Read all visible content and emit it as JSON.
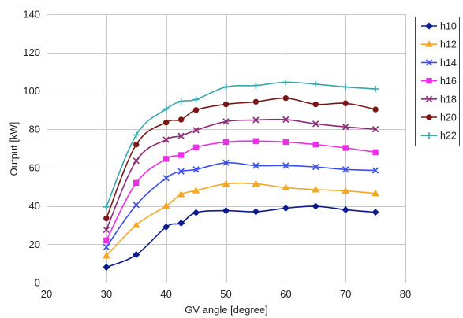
{
  "chart_data": {
    "type": "line",
    "xlabel": "GV angle [degree]",
    "ylabel": "Output [kW]",
    "xlim": [
      20,
      80
    ],
    "ylim": [
      0,
      140
    ],
    "xticks": [
      20,
      30,
      40,
      50,
      60,
      70,
      80
    ],
    "yticks": [
      0,
      20,
      40,
      60,
      80,
      100,
      120,
      140
    ],
    "grid": true,
    "legend_position": "right",
    "x": [
      30,
      35,
      40,
      42.5,
      45,
      50,
      55,
      60,
      65,
      70,
      75
    ],
    "series": [
      {
        "name": "h10",
        "marker": "diamond",
        "color": "#0b1a8c",
        "values": [
          8,
          14.5,
          29,
          31,
          36.5,
          37.5,
          37,
          38.8,
          39.8,
          38,
          36.7
        ]
      },
      {
        "name": "h12",
        "marker": "triangle",
        "color": "#f5a623",
        "values": [
          14,
          30,
          40,
          46,
          48,
          51.5,
          51.5,
          49.5,
          48.5,
          47.8,
          46.5
        ]
      },
      {
        "name": "h14",
        "marker": "x",
        "color": "#3b4ef0",
        "values": [
          18.5,
          40.5,
          54.5,
          58,
          59,
          62.5,
          61,
          61,
          60.3,
          59,
          58.5
        ]
      },
      {
        "name": "h16",
        "marker": "square",
        "color": "#ee2ee6",
        "values": [
          22,
          52,
          64.5,
          66.5,
          70.5,
          73.3,
          73.8,
          73.3,
          72,
          70.2,
          68
        ]
      },
      {
        "name": "h18",
        "marker": "x",
        "color": "#8e2a7a",
        "values": [
          27.5,
          63.5,
          74.5,
          76.5,
          79.5,
          84,
          84.8,
          85,
          82.8,
          81.2,
          80
        ]
      },
      {
        "name": "h20",
        "marker": "circle",
        "color": "#7a1616",
        "values": [
          33.5,
          72,
          83.5,
          85,
          90,
          93,
          94.3,
          96.2,
          93,
          93.5,
          90.3
        ]
      },
      {
        "name": "h22",
        "marker": "plus",
        "color": "#3aa5a8",
        "values": [
          39.5,
          77,
          90.5,
          94.5,
          95.5,
          102,
          102.8,
          104.5,
          103.5,
          102,
          101
        ]
      }
    ]
  }
}
